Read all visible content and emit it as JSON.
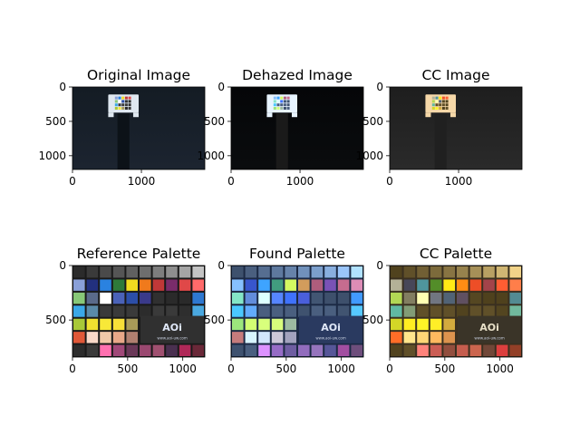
{
  "chart_data": [
    {
      "type": "image",
      "title": "Original Image",
      "xlim": [
        0,
        1920
      ],
      "ylim": [
        1200,
        0
      ],
      "xticks": [
        0,
        1000
      ],
      "yticks": [
        0,
        500,
        1000
      ],
      "tint": "original"
    },
    {
      "type": "image",
      "title": "Dehazed Image",
      "xlim": [
        0,
        1920
      ],
      "ylim": [
        1200,
        0
      ],
      "xticks": [
        0,
        1000
      ],
      "yticks": [
        0,
        500,
        1000
      ],
      "tint": "dehazed"
    },
    {
      "type": "image",
      "title": "CC Image",
      "xlim": [
        0,
        1920
      ],
      "ylim": [
        1200,
        0
      ],
      "xticks": [
        0,
        1000
      ],
      "yticks": [
        0,
        500,
        1000
      ],
      "tint": "cc"
    },
    {
      "type": "image",
      "title": "Reference Palette",
      "xlim": [
        0,
        1200
      ],
      "ylim": [
        840,
        0
      ],
      "xticks": [
        0,
        500,
        1000
      ],
      "yticks": [
        0,
        500
      ],
      "tint": "reference"
    },
    {
      "type": "image",
      "title": "Found Palette",
      "xlim": [
        0,
        1200
      ],
      "ylim": [
        840,
        0
      ],
      "xticks": [
        0,
        500,
        1000
      ],
      "yticks": [
        0,
        500
      ],
      "tint": "found"
    },
    {
      "type": "image",
      "title": "CC Palette",
      "xlim": [
        0,
        1200
      ],
      "ylim": [
        840,
        0
      ],
      "xticks": [
        0,
        500,
        1000
      ],
      "yticks": [
        0,
        500
      ],
      "tint": "ccpalette"
    }
  ],
  "palette_logo_text": "www.aoi-uw.com",
  "colors": {
    "checker_rows": [
      [
        "#2b2b2b",
        "#3a3a3a",
        "#4a4a4a",
        "#555555",
        "#606060",
        "#6e6e6e",
        "#7d7d7d",
        "#8e8e8e",
        "#a5a5a5",
        "#c4c4c4"
      ],
      [
        "#8aa0d8",
        "#22307e",
        "#2a82e0",
        "#2e7a3a",
        "#f2dc20",
        "#f07a1c",
        "#c03838",
        "#7a2c6a",
        "#e04848",
        "#ff6a6a"
      ],
      [
        "#88c878",
        "#5a6a8a",
        "#ffffff",
        "#4a62b8",
        "#2c4ea8",
        "#3a3a8a",
        "#303030",
        "#2a2a2a",
        "#2a2a2a",
        "#2e78d0"
      ],
      [
        "#3aa8e8",
        "#5a8aa8",
        "#3a3a3a",
        "#3a3a3a",
        "#3a3a3a",
        "#2c2c2c",
        "#3a3a3a",
        "#3a3a3a",
        "#2e2e2e",
        "#4aa8e0"
      ],
      [
        "#a8c838",
        "#f0e030",
        "#f8e838",
        "#f8e038",
        "#a89a58",
        "#3a3a3a",
        "#2a2a2a",
        "#2a2a2a",
        "#3a3a3a",
        "#c03030"
      ],
      [
        "#e05838",
        "#f8d8c8",
        "#f0c8a8",
        "#e8a888",
        "#b08070",
        "#3a3a3a",
        "#3a3a3a",
        "#3a3a3a",
        "#3a3a3a",
        "#3a3a3a"
      ],
      [
        "#2c2c2c",
        "#3a3a3a",
        "#ff70b0",
        "#a04878",
        "#6a3858",
        "#9a4870",
        "#a05070",
        "#4a3050",
        "#b02858",
        "#6a2838"
      ]
    ]
  }
}
